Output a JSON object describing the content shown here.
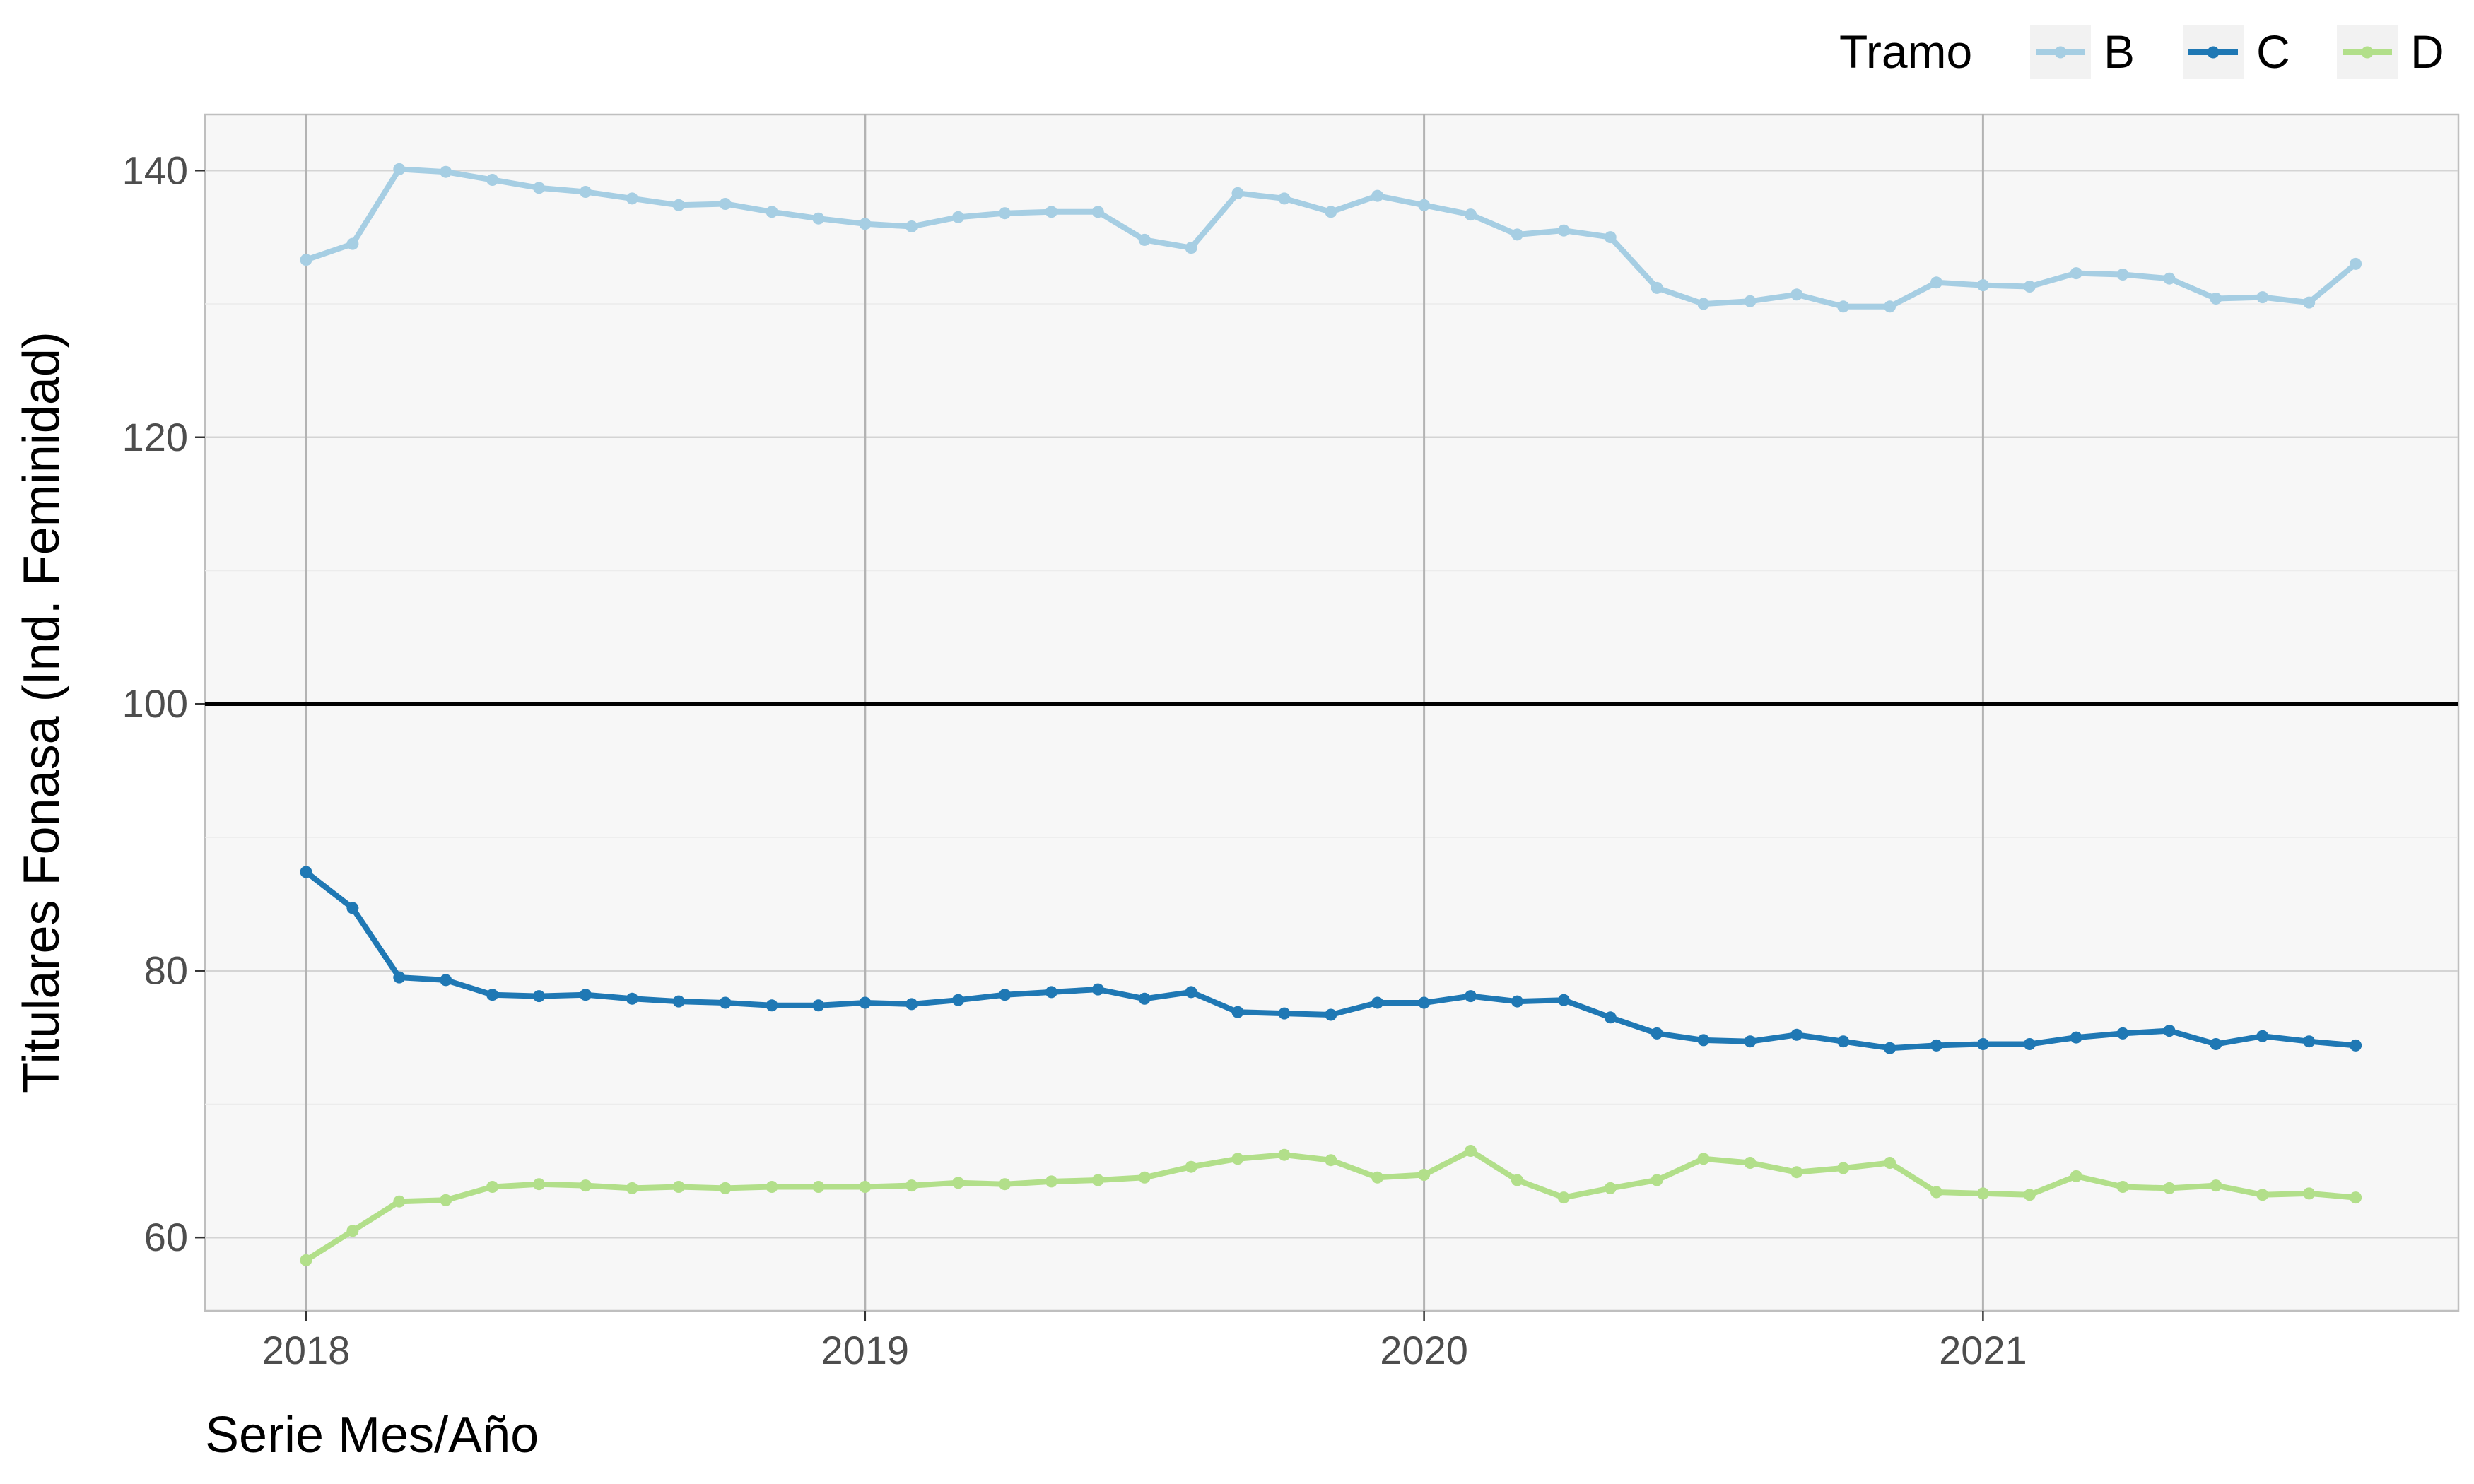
{
  "chart_data": {
    "type": "line",
    "xlabel": "Serie Mes/Año",
    "ylabel": "Titulares Fonasa (Ind. Feminidad)",
    "xticks": [
      "2018",
      "2019",
      "2020",
      "2021"
    ],
    "yticks": [
      60,
      80,
      100,
      120,
      140
    ],
    "ylim": [
      54.5,
      144.2
    ],
    "x_start": "2018-01",
    "x_end": "2021-09",
    "reference_line": 100,
    "grid": true,
    "legend": {
      "title": "Tramo",
      "position": "top-right"
    },
    "x": [
      "2018-01",
      "2018-02",
      "2018-03",
      "2018-04",
      "2018-05",
      "2018-06",
      "2018-07",
      "2018-08",
      "2018-09",
      "2018-10",
      "2018-11",
      "2018-12",
      "2019-01",
      "2019-02",
      "2019-03",
      "2019-04",
      "2019-05",
      "2019-06",
      "2019-07",
      "2019-08",
      "2019-09",
      "2019-10",
      "2019-11",
      "2019-12",
      "2020-01",
      "2020-02",
      "2020-03",
      "2020-04",
      "2020-05",
      "2020-06",
      "2020-07",
      "2020-08",
      "2020-09",
      "2020-10",
      "2020-11",
      "2020-12",
      "2021-01",
      "2021-02",
      "2021-03",
      "2021-04",
      "2021-05",
      "2021-06",
      "2021-07",
      "2021-08",
      "2021-09"
    ],
    "series": [
      {
        "name": "B",
        "color": "#a6cee3",
        "values": [
          133.3,
          134.5,
          140.1,
          139.9,
          139.3,
          138.7,
          138.4,
          137.9,
          137.4,
          137.5,
          136.9,
          136.4,
          136.0,
          135.8,
          136.5,
          136.8,
          136.9,
          136.9,
          134.8,
          134.2,
          138.3,
          137.9,
          136.9,
          138.1,
          137.4,
          136.7,
          135.2,
          135.5,
          135.0,
          131.2,
          130.0,
          130.2,
          130.7,
          129.8,
          129.8,
          131.6,
          131.4,
          131.3,
          132.3,
          132.2,
          131.9,
          130.4,
          130.5,
          130.1,
          133.0
        ]
      },
      {
        "name": "C",
        "color": "#1f78b4",
        "values": [
          87.4,
          84.7,
          79.5,
          79.3,
          78.2,
          78.1,
          78.2,
          77.9,
          77.7,
          77.6,
          77.4,
          77.4,
          77.6,
          77.5,
          77.8,
          78.2,
          78.4,
          78.6,
          77.9,
          78.4,
          76.9,
          76.8,
          76.7,
          77.6,
          77.6,
          78.1,
          77.7,
          77.8,
          76.5,
          75.3,
          74.8,
          74.7,
          75.2,
          74.7,
          74.2,
          74.4,
          74.5,
          74.5,
          75.0,
          75.3,
          75.5,
          74.5,
          75.1,
          74.7,
          74.4
        ]
      },
      {
        "name": "D",
        "color": "#b2df8a",
        "values": [
          58.3,
          60.5,
          62.7,
          62.8,
          63.8,
          64.0,
          63.9,
          63.7,
          63.8,
          63.7,
          63.8,
          63.8,
          63.8,
          63.9,
          64.1,
          64.0,
          64.2,
          64.3,
          64.5,
          65.3,
          65.9,
          66.2,
          65.8,
          64.5,
          64.7,
          66.5,
          64.3,
          63.0,
          63.7,
          64.3,
          65.9,
          65.6,
          64.9,
          65.2,
          65.6,
          63.4,
          63.3,
          63.2,
          64.6,
          63.8,
          63.7,
          63.9,
          63.2,
          63.3,
          63.0
        ]
      }
    ]
  }
}
